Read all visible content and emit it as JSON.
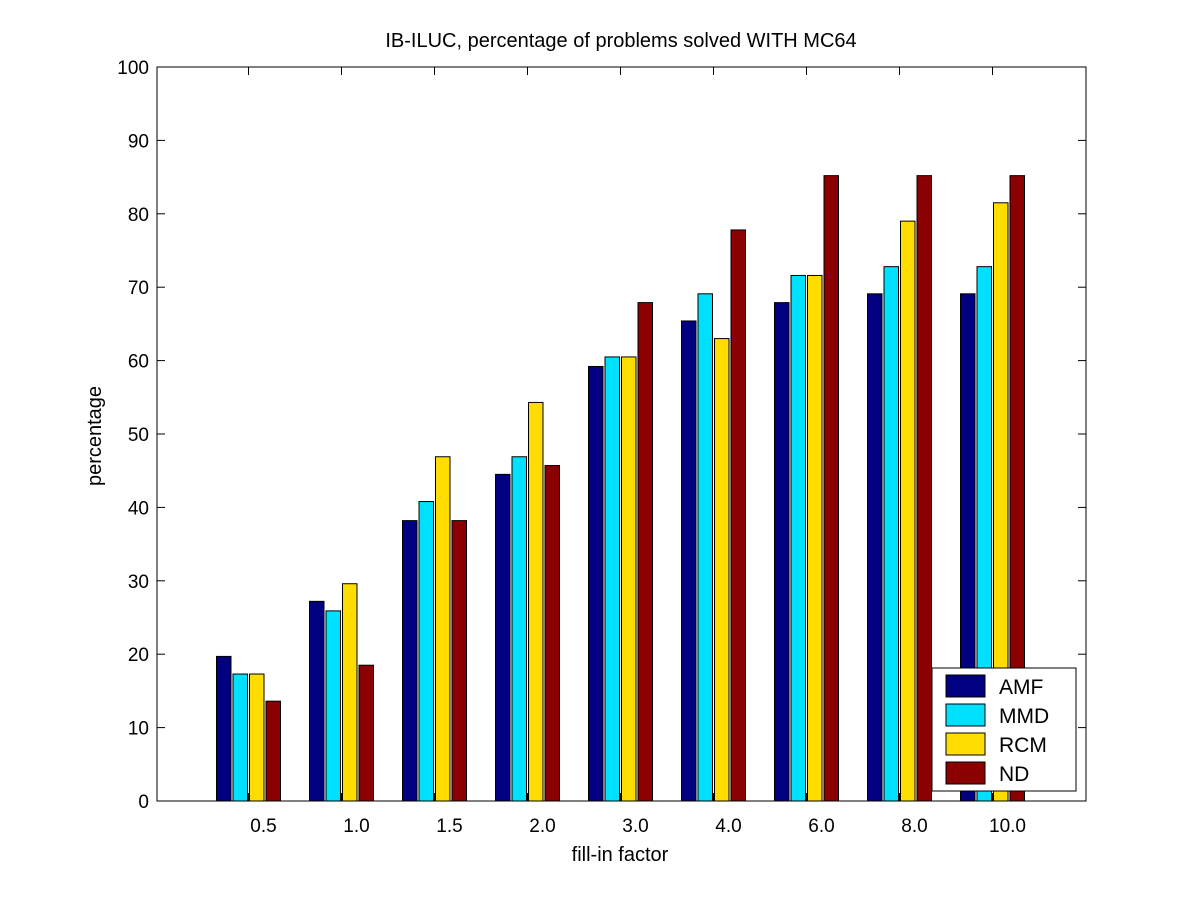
{
  "chart_data": {
    "type": "bar",
    "title": "IB-ILUC, percentage of problems solved WITH MC64",
    "xlabel": "fill-in factor",
    "ylabel": "percentage",
    "ylim": [
      0,
      100
    ],
    "yticks": [
      0,
      10,
      20,
      30,
      40,
      50,
      60,
      70,
      80,
      90,
      100
    ],
    "categories": [
      "0.5",
      "1.0",
      "1.5",
      "2.0",
      "3.0",
      "4.0",
      "6.0",
      "8.0",
      "10.0"
    ],
    "series": [
      {
        "name": "AMF",
        "color": "#000080",
        "values": [
          19.7,
          27.2,
          38.2,
          44.5,
          59.2,
          65.4,
          67.9,
          69.1,
          69.1
        ]
      },
      {
        "name": "MMD",
        "color": "#00e0ff",
        "values": [
          17.3,
          25.9,
          40.8,
          46.9,
          60.5,
          69.1,
          71.6,
          72.8,
          72.8
        ]
      },
      {
        "name": "RCM",
        "color": "#ffdd00",
        "values": [
          17.3,
          29.6,
          46.9,
          54.3,
          60.5,
          63.0,
          71.6,
          79.0,
          81.5
        ]
      },
      {
        "name": "ND",
        "color": "#8b0000",
        "values": [
          13.6,
          18.5,
          38.2,
          45.7,
          67.9,
          77.8,
          85.2,
          85.2,
          85.2
        ]
      }
    ],
    "grid": false,
    "legend_position": "bottom-right"
  }
}
